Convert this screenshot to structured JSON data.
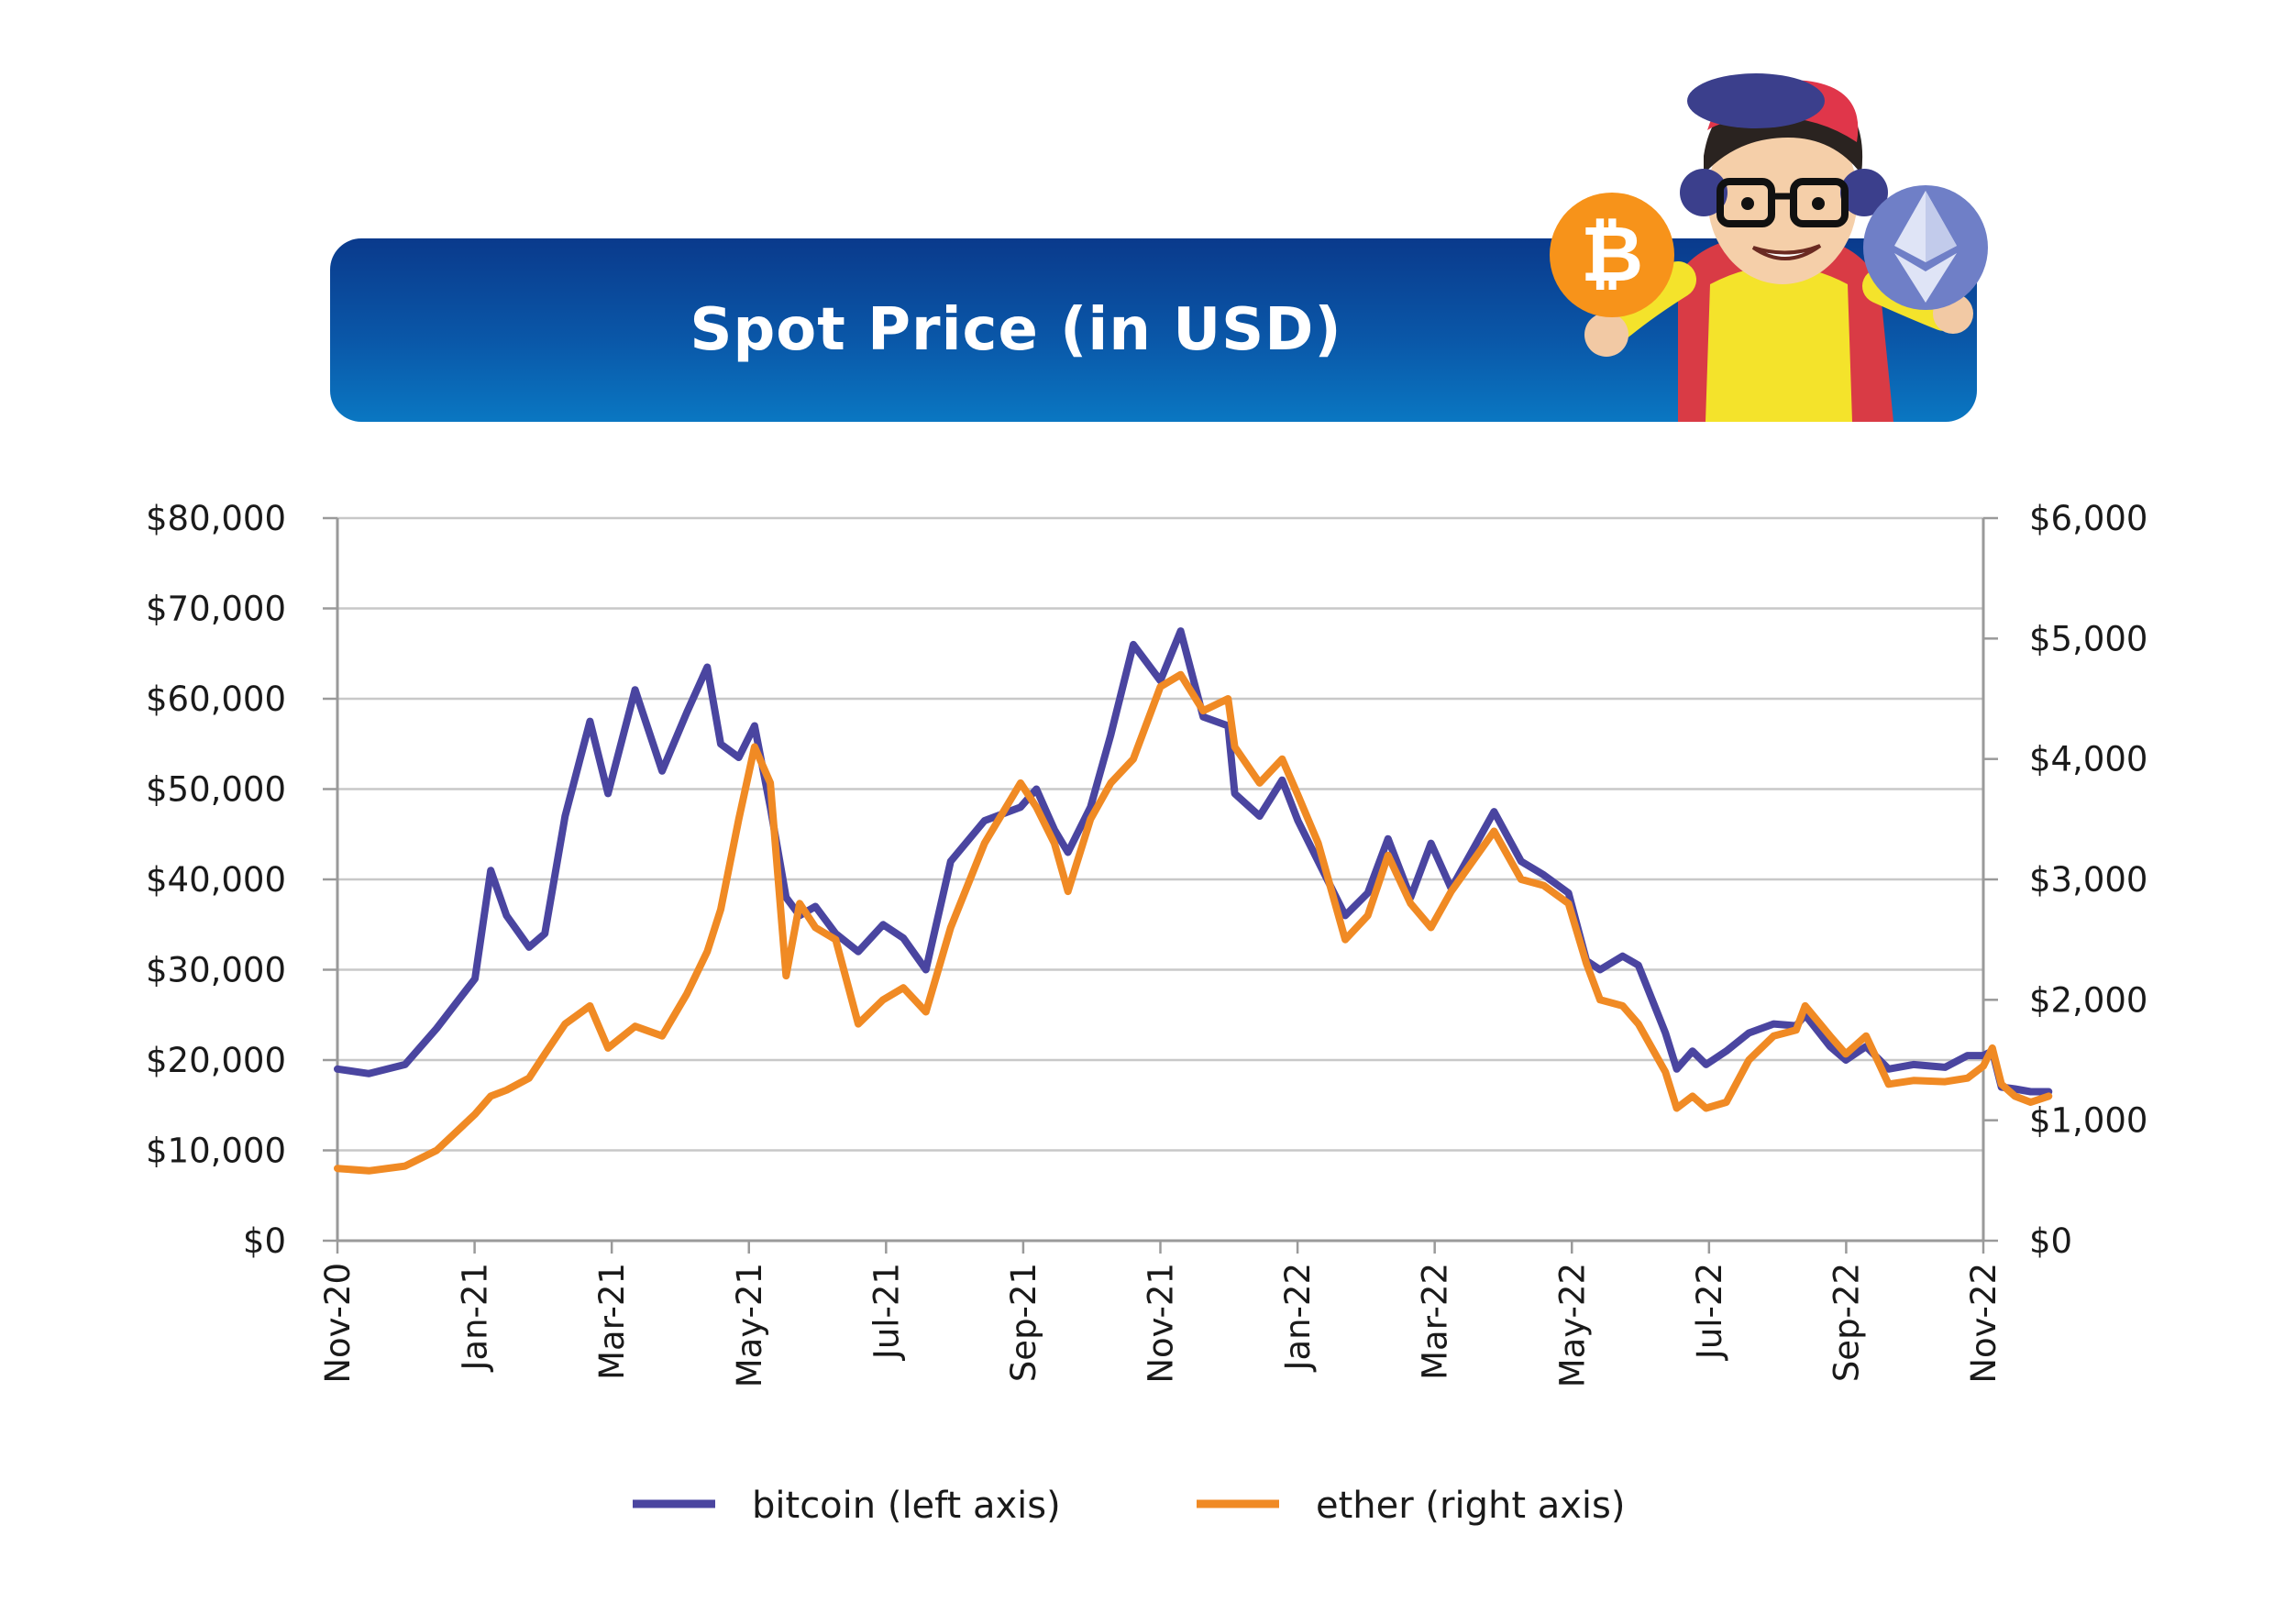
{
  "header": {
    "title": "Spot Price  (in USD)",
    "bitcoin_icon": "bitcoin-coin-icon",
    "ether_icon": "ethereum-coin-icon",
    "mascot": "cartoon-mascot-holding-coins"
  },
  "colors": {
    "banner_top": "#0a3a8c",
    "banner_bottom": "#0a77c2",
    "bitcoin": "#4a45a0",
    "ether": "#f08a24",
    "bitcoin_coin": "#f7931a",
    "ether_coin": "#6f7fc7",
    "grid": "#c8c8c8",
    "axis": "#9a9a9a"
  },
  "chart_data": {
    "type": "line",
    "title": "Spot Price  (in USD)",
    "x_range": [
      "2020-11",
      "2022-11"
    ],
    "x_tick_labels": [
      "Nov-20",
      "Jan-21",
      "Mar-21",
      "May-21",
      "Jul-21",
      "Sep-21",
      "Nov-21",
      "Jan-22",
      "Mar-22",
      "May-22",
      "Jul-22",
      "Sep-22",
      "Nov-22"
    ],
    "left_axis": {
      "min": 0,
      "max": 80000,
      "step": 10000,
      "tick_labels": [
        "$0",
        "$10,000",
        "$20,000",
        "$30,000",
        "$40,000",
        "$50,000",
        "$60,000",
        "$70,000",
        "$80,000"
      ]
    },
    "right_axis": {
      "min": 0,
      "max": 6000,
      "step": 1000,
      "tick_labels": [
        "$0",
        "$1,000",
        "$2,000",
        "$3,000",
        "$4,000",
        "$5,000",
        "$6,000"
      ]
    },
    "grid": true,
    "legend_position": "bottom",
    "x": [
      "2020-11-01",
      "2020-11-15",
      "2020-12-01",
      "2020-12-15",
      "2021-01-01",
      "2021-01-08",
      "2021-01-15",
      "2021-01-25",
      "2021-02-01",
      "2021-02-10",
      "2021-02-21",
      "2021-03-01",
      "2021-03-13",
      "2021-03-25",
      "2021-04-05",
      "2021-04-14",
      "2021-04-20",
      "2021-04-28",
      "2021-05-05",
      "2021-05-12",
      "2021-05-19",
      "2021-05-25",
      "2021-06-01",
      "2021-06-10",
      "2021-06-20",
      "2021-07-01",
      "2021-07-10",
      "2021-07-20",
      "2021-07-31",
      "2021-08-15",
      "2021-08-31",
      "2021-09-07",
      "2021-09-15",
      "2021-09-21",
      "2021-10-01",
      "2021-10-10",
      "2021-10-20",
      "2021-11-01",
      "2021-11-10",
      "2021-11-20",
      "2021-12-01",
      "2021-12-04",
      "2021-12-15",
      "2021-12-25",
      "2022-01-01",
      "2022-01-10",
      "2022-01-22",
      "2022-02-01",
      "2022-02-10",
      "2022-02-20",
      "2022-03-01",
      "2022-03-10",
      "2022-03-29",
      "2022-04-10",
      "2022-04-20",
      "2022-05-01",
      "2022-05-09",
      "2022-05-15",
      "2022-05-25",
      "2022-06-01",
      "2022-06-13",
      "2022-06-18",
      "2022-06-25",
      "2022-07-01",
      "2022-07-10",
      "2022-07-20",
      "2022-07-31",
      "2022-08-10",
      "2022-08-14",
      "2022-08-25",
      "2022-09-01",
      "2022-09-10",
      "2022-09-20",
      "2022-10-01",
      "2022-10-15",
      "2022-10-25",
      "2022-11-01",
      "2022-11-05",
      "2022-11-09",
      "2022-11-15",
      "2022-11-22",
      "2022-11-30"
    ],
    "series": [
      {
        "name": "bitcoin (left axis)",
        "axis": "left",
        "values": [
          19000,
          18500,
          19500,
          23500,
          29000,
          41000,
          36000,
          32500,
          34000,
          47000,
          57500,
          49500,
          61000,
          52000,
          58500,
          63500,
          55000,
          53500,
          57000,
          48000,
          38000,
          36000,
          37000,
          34000,
          32000,
          35000,
          33500,
          30000,
          42000,
          46500,
          48000,
          50000,
          45500,
          43000,
          48000,
          56000,
          66000,
          62000,
          67500,
          58000,
          57000,
          49500,
          47000,
          51000,
          46500,
          42000,
          36000,
          38500,
          44500,
          38000,
          44000,
          39000,
          47500,
          42000,
          40500,
          38500,
          31000,
          30000,
          31500,
          30500,
          23000,
          19000,
          21000,
          19500,
          21000,
          23000,
          24000,
          23800,
          25000,
          21500,
          20000,
          21500,
          19000,
          19500,
          19200,
          20500,
          20500,
          21000,
          17000,
          16800,
          16500,
          16500
        ]
      },
      {
        "name": "ether (right axis)",
        "axis": "right",
        "values": [
          600,
          580,
          620,
          750,
          1050,
          1200,
          1250,
          1350,
          1550,
          1800,
          1950,
          1600,
          1780,
          1700,
          2050,
          2400,
          2750,
          3500,
          4100,
          3800,
          2200,
          2800,
          2600,
          2500,
          1800,
          2000,
          2100,
          1900,
          2600,
          3300,
          3800,
          3600,
          3300,
          2900,
          3500,
          3800,
          4000,
          4600,
          4700,
          4400,
          4500,
          4100,
          3800,
          4000,
          3700,
          3300,
          2500,
          2700,
          3200,
          2800,
          2600,
          2900,
          3400,
          3000,
          2950,
          2800,
          2300,
          2000,
          1950,
          1800,
          1400,
          1100,
          1200,
          1100,
          1150,
          1500,
          1700,
          1750,
          1950,
          1700,
          1550,
          1700,
          1300,
          1330,
          1320,
          1350,
          1450,
          1600,
          1300,
          1200,
          1150,
          1200
        ]
      }
    ]
  },
  "legend": [
    {
      "label": "bitcoin (left axis)",
      "color": "#4a45a0"
    },
    {
      "label": "ether (right axis)",
      "color": "#f08a24"
    }
  ]
}
